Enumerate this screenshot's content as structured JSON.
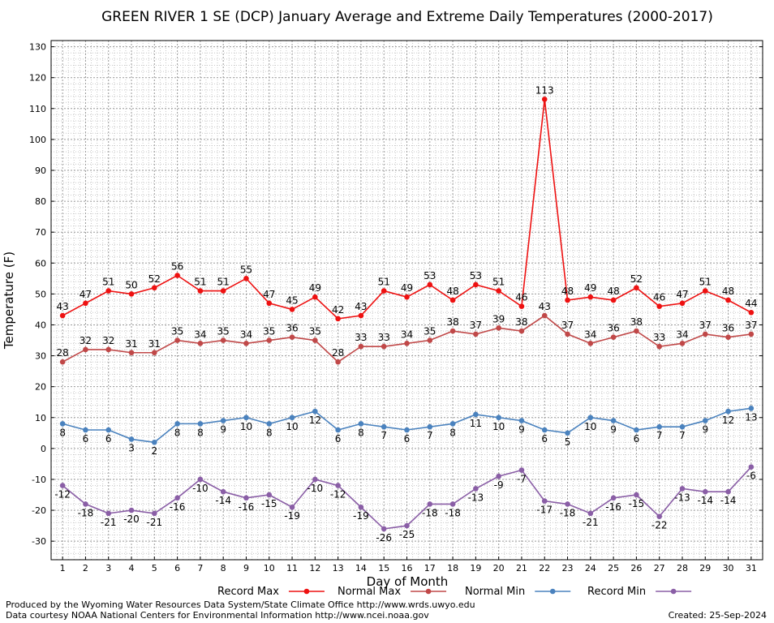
{
  "chart_data": {
    "type": "line",
    "title": "GREEN RIVER 1 SE (DCP) January Average and Extreme Daily Temperatures (2000-2017)",
    "xlabel": "Day of Month",
    "ylabel": "Temperature (F)",
    "x": [
      1,
      2,
      3,
      4,
      5,
      6,
      7,
      8,
      9,
      10,
      11,
      12,
      13,
      14,
      15,
      16,
      17,
      18,
      19,
      20,
      21,
      22,
      23,
      24,
      25,
      26,
      27,
      28,
      29,
      30,
      31
    ],
    "xlim": [
      0.5,
      31.5
    ],
    "ylim": [
      -36,
      132
    ],
    "yticks": [
      -30,
      -20,
      -10,
      0,
      10,
      20,
      30,
      40,
      50,
      60,
      70,
      80,
      90,
      100,
      110,
      120,
      130
    ],
    "grid": true,
    "legend_position": "bottom",
    "series": [
      {
        "name": "Record Max",
        "color": "#ee1111",
        "values": [
          43,
          47,
          51,
          50,
          52,
          56,
          51,
          51,
          55,
          47,
          45,
          49,
          42,
          43,
          51,
          49,
          53,
          48,
          53,
          51,
          46,
          113,
          48,
          49,
          48,
          52,
          46,
          47,
          51,
          48,
          44
        ]
      },
      {
        "name": "Normal Max",
        "color": "#c04848",
        "values": [
          28,
          32,
          32,
          31,
          31,
          35,
          34,
          35,
          34,
          35,
          36,
          35,
          28,
          33,
          33,
          34,
          35,
          38,
          37,
          39,
          38,
          43,
          37,
          34,
          36,
          38,
          33,
          34,
          37,
          36,
          37
        ]
      },
      {
        "name": "Normal Min",
        "color": "#4a82be",
        "values": [
          8,
          6,
          6,
          3,
          2,
          8,
          8,
          9,
          10,
          8,
          10,
          12,
          6,
          8,
          7,
          6,
          7,
          8,
          11,
          10,
          9,
          6,
          5,
          10,
          9,
          6,
          7,
          7,
          9,
          12,
          13
        ]
      },
      {
        "name": "Record Min",
        "color": "#8a5ea6",
        "values": [
          -12,
          -18,
          -21,
          -20,
          -21,
          -16,
          -10,
          -14,
          -16,
          -15,
          -19,
          -10,
          -12,
          -19,
          -26,
          -25,
          -18,
          -18,
          -13,
          -9,
          -7,
          -17,
          -18,
          -21,
          -16,
          -15,
          -22,
          -13,
          -14,
          -14,
          -6
        ]
      }
    ]
  },
  "footer": {
    "produced_by": "Produced by the Wyoming Water Resources Data System/State Climate Office http://www.wrds.uwyo.edu",
    "courtesy": "Data courtesy NOAA National Centers for Environmental Information http://www.ncei.noaa.gov",
    "created": "Created:  25-Sep-2024"
  }
}
